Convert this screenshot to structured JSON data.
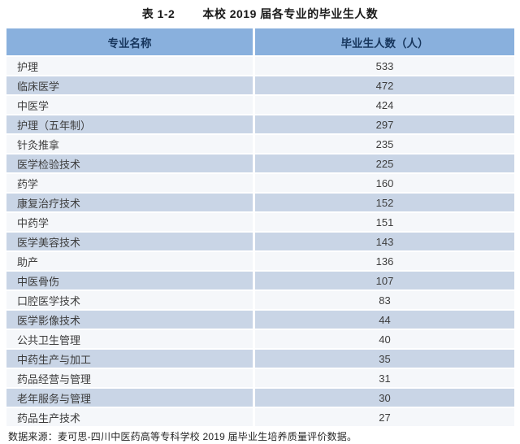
{
  "page": {
    "caption": {
      "number": "表 1-2",
      "title": "本校 2019 届各专业的毕业生人数"
    },
    "table": {
      "headers": [
        "专业名称",
        "毕业生人数（人）"
      ],
      "rows": [
        [
          "护理",
          "533"
        ],
        [
          "临床医学",
          "472"
        ],
        [
          "中医学",
          "424"
        ],
        [
          "护理（五年制）",
          "297"
        ],
        [
          "针灸推拿",
          "235"
        ],
        [
          "医学检验技术",
          "225"
        ],
        [
          "药学",
          "160"
        ],
        [
          "康复治疗技术",
          "152"
        ],
        [
          "中药学",
          "151"
        ],
        [
          "医学美容技术",
          "143"
        ],
        [
          "助产",
          "136"
        ],
        [
          "中医骨伤",
          "107"
        ],
        [
          "口腔医学技术",
          "83"
        ],
        [
          "医学影像技术",
          "44"
        ],
        [
          "公共卫生管理",
          "40"
        ],
        [
          "中药生产与加工",
          "35"
        ],
        [
          "药品经营与管理",
          "31"
        ],
        [
          "老年服务与管理",
          "30"
        ],
        [
          "药品生产技术",
          "27"
        ]
      ]
    },
    "footnote": "数据来源：麦可思-四川中医药高等专科学校 2019 届毕业生培养质量评价数据。",
    "colors": {
      "header_bg": "#89B0DD",
      "row_alt_bg": "#C9D5E6",
      "row_bg": "#F5F7FA",
      "header_text": "#17365D",
      "body_text": "#3D3D3D"
    }
  },
  "chart_data": {
    "type": "table",
    "title": "表 1-2 本校 2019 届各专业的毕业生人数",
    "categories": [
      "护理",
      "临床医学",
      "中医学",
      "护理（五年制）",
      "针灸推拿",
      "医学检验技术",
      "药学",
      "康复治疗技术",
      "中药学",
      "医学美容技术",
      "助产",
      "中医骨伤",
      "口腔医学技术",
      "医学影像技术",
      "公共卫生管理",
      "中药生产与加工",
      "药品经营与管理",
      "老年服务与管理",
      "药品生产技术"
    ],
    "values": [
      533,
      472,
      424,
      297,
      235,
      225,
      160,
      152,
      151,
      143,
      136,
      107,
      83,
      44,
      40,
      35,
      31,
      30,
      27
    ],
    "xlabel": "专业名称",
    "ylabel": "毕业生人数（人）"
  }
}
